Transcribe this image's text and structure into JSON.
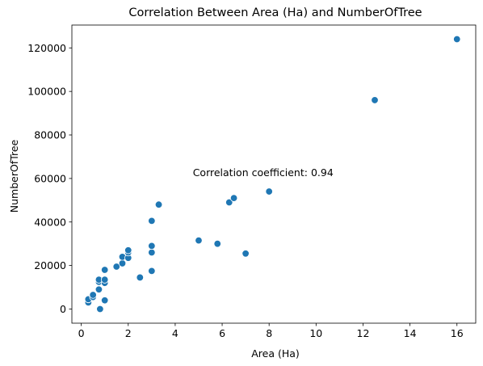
{
  "chart_data": {
    "type": "scatter",
    "title": "Correlation Between Area (Ha) and NumberOfTree",
    "xlabel": "Area (Ha)",
    "ylabel": "NumberOfTree",
    "xlim": [
      -0.4,
      16.8
    ],
    "ylim": [
      -6500,
      130500
    ],
    "xticks": [
      0,
      2,
      4,
      6,
      8,
      10,
      12,
      14,
      16
    ],
    "yticks": [
      0,
      20000,
      40000,
      60000,
      80000,
      100000,
      120000
    ],
    "grid": false,
    "marker_color": "#1f77b4",
    "annotation": {
      "text": "Correlation coefficient: 0.94",
      "x": 4.75,
      "y": 61000
    },
    "series": [
      {
        "points": [
          {
            "x": 0.3,
            "y": 3000
          },
          {
            "x": 0.3,
            "y": 4500
          },
          {
            "x": 0.5,
            "y": 5500
          },
          {
            "x": 0.5,
            "y": 6500
          },
          {
            "x": 0.75,
            "y": 9000
          },
          {
            "x": 0.75,
            "y": 12500
          },
          {
            "x": 0.75,
            "y": 13500
          },
          {
            "x": 0.8,
            "y": 0
          },
          {
            "x": 1.0,
            "y": 4000
          },
          {
            "x": 1.0,
            "y": 12000
          },
          {
            "x": 1.0,
            "y": 13500
          },
          {
            "x": 1.0,
            "y": 18000
          },
          {
            "x": 1.5,
            "y": 19500
          },
          {
            "x": 1.75,
            "y": 21000
          },
          {
            "x": 1.75,
            "y": 24000
          },
          {
            "x": 2.0,
            "y": 23500
          },
          {
            "x": 2.0,
            "y": 26000
          },
          {
            "x": 2.0,
            "y": 27000
          },
          {
            "x": 2.5,
            "y": 14500
          },
          {
            "x": 3.0,
            "y": 17500
          },
          {
            "x": 3.0,
            "y": 26000
          },
          {
            "x": 3.0,
            "y": 29000
          },
          {
            "x": 3.0,
            "y": 40500
          },
          {
            "x": 3.3,
            "y": 48000
          },
          {
            "x": 5.0,
            "y": 31500
          },
          {
            "x": 5.8,
            "y": 30000
          },
          {
            "x": 6.3,
            "y": 49000
          },
          {
            "x": 6.5,
            "y": 51000
          },
          {
            "x": 7.0,
            "y": 25500
          },
          {
            "x": 8.0,
            "y": 54000
          },
          {
            "x": 12.5,
            "y": 96000
          },
          {
            "x": 16.0,
            "y": 124000
          }
        ]
      }
    ]
  }
}
